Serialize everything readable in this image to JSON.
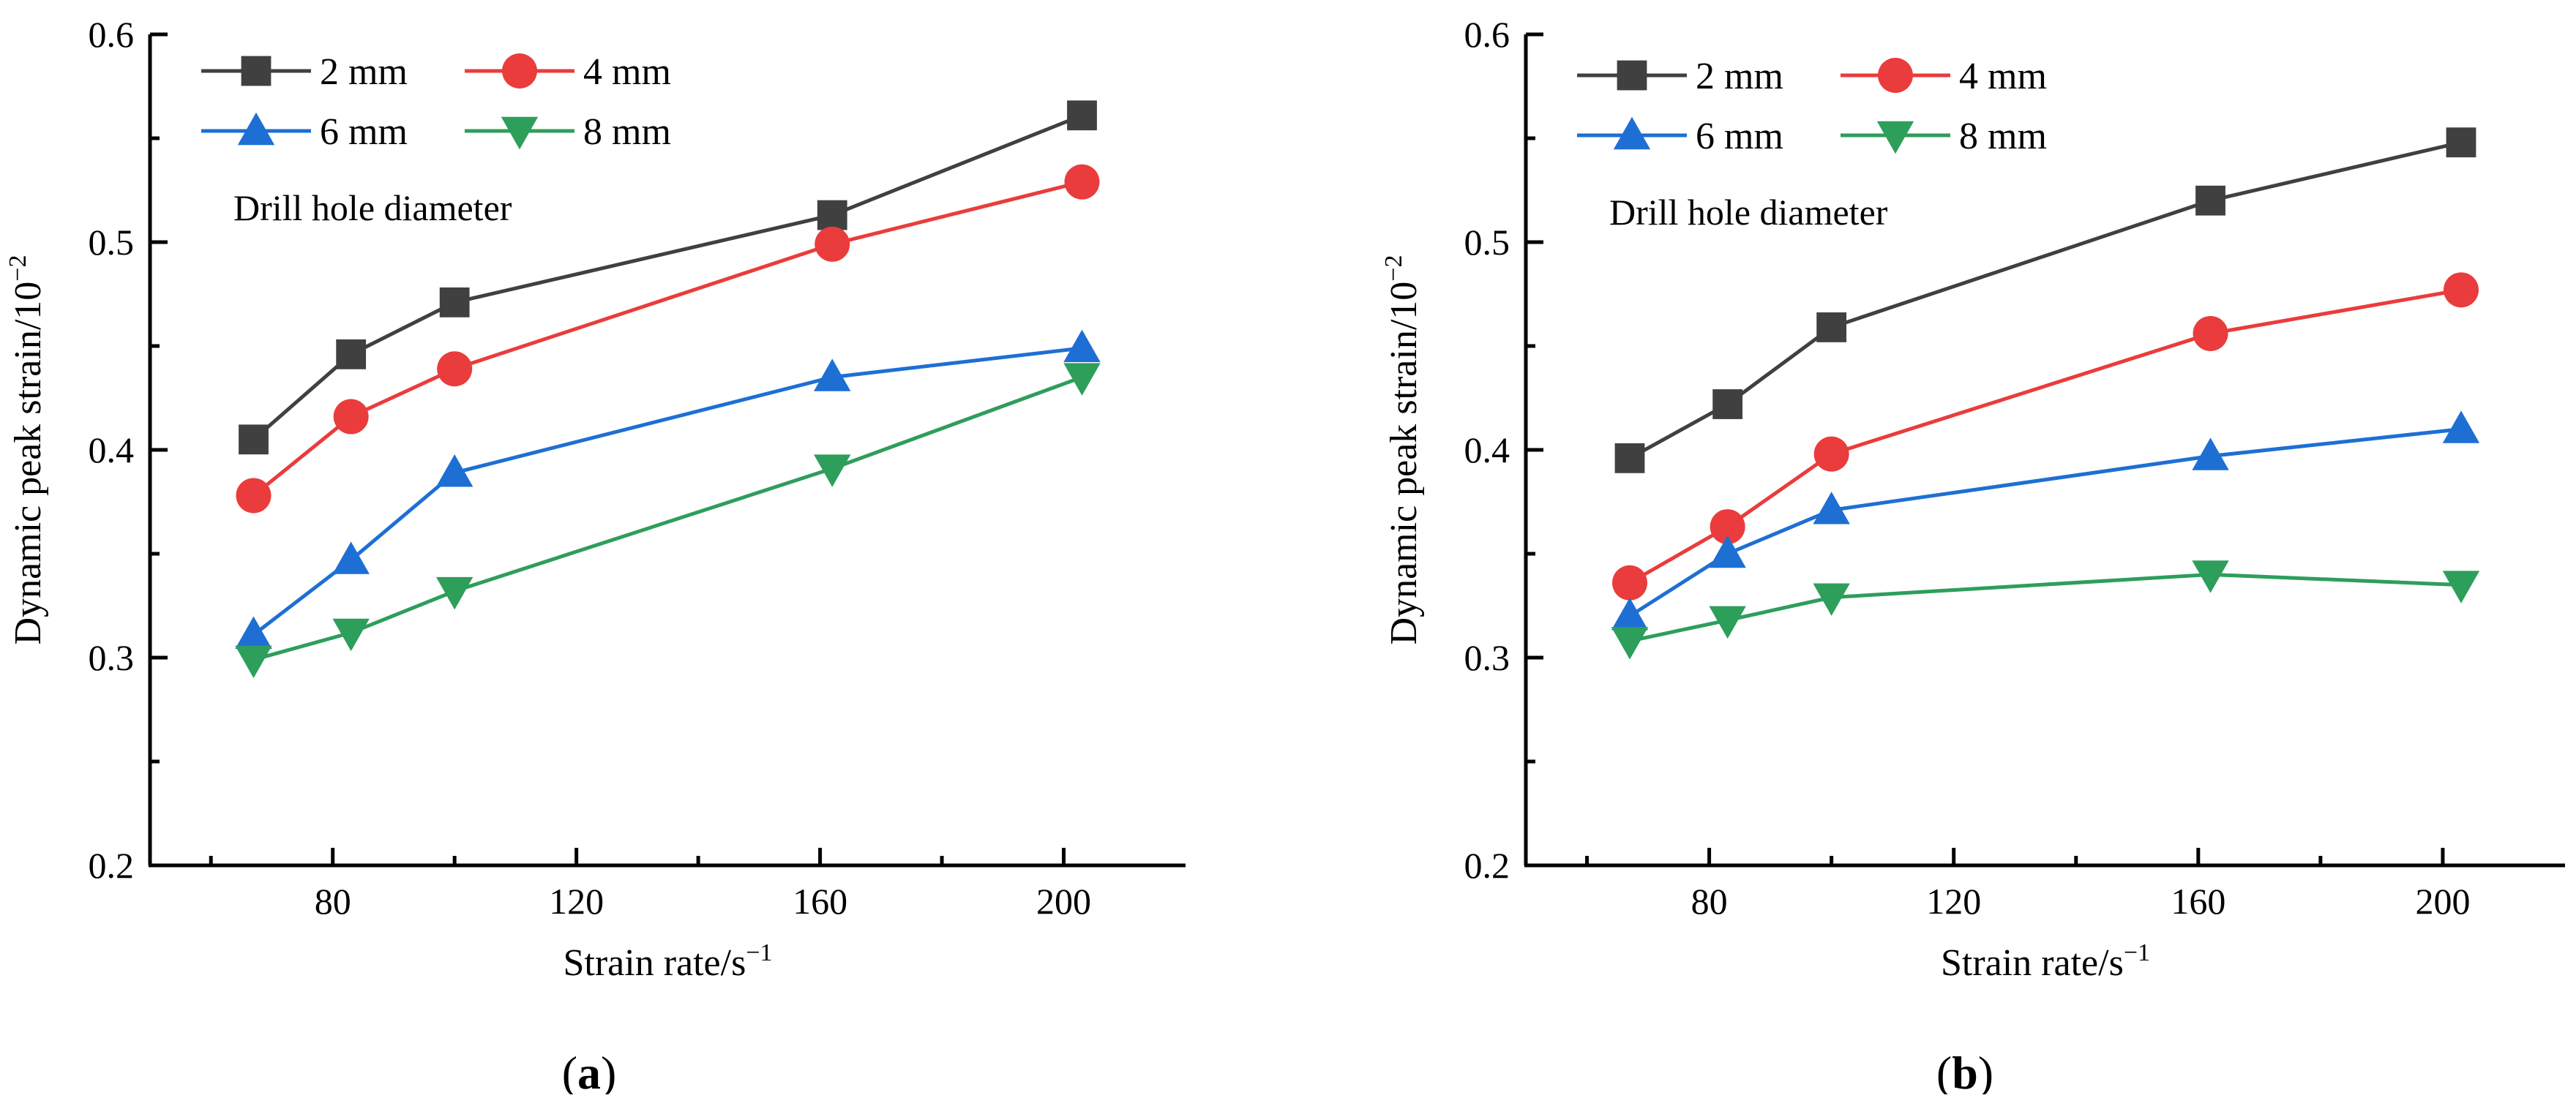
{
  "chart_data": [
    {
      "type": "line",
      "panel_label": "(a)",
      "panel_letter": "a",
      "xlabel": "Strain rate/s",
      "xlabel_sup": "−1",
      "ylabel": "Dynamic peak strain/10",
      "ylabel_sup": "−2",
      "xlim": [
        50,
        220
      ],
      "ylim": [
        0.2,
        0.6
      ],
      "xticks": [
        80,
        120,
        160,
        200
      ],
      "yticks": [
        0.2,
        0.3,
        0.4,
        0.5,
        0.6
      ],
      "ytick_labels": [
        "0.2",
        "0.3",
        "0.4",
        "0.5",
        "0.6"
      ],
      "legend_title": "Drill hole diameter",
      "legend_position": "top-left",
      "grid": false,
      "series": [
        {
          "name": "2 mm",
          "marker": "square",
          "color": "#404040",
          "x": [
            67,
            83,
            100,
            162,
            203
          ],
          "values": [
            0.405,
            0.446,
            0.471,
            0.513,
            0.561
          ]
        },
        {
          "name": "4 mm",
          "marker": "circle",
          "color": "#ea3c3c",
          "x": [
            67,
            83,
            100,
            162,
            203
          ],
          "values": [
            0.378,
            0.416,
            0.439,
            0.499,
            0.529
          ]
        },
        {
          "name": "6 mm",
          "marker": "triangle-up",
          "color": "#1e6fd4",
          "x": [
            67,
            83,
            100,
            162,
            203
          ],
          "values": [
            0.311,
            0.347,
            0.389,
            0.435,
            0.449
          ]
        },
        {
          "name": "8 mm",
          "marker": "triangle-down",
          "color": "#2e9e5b",
          "x": [
            67,
            83,
            100,
            162,
            203
          ],
          "values": [
            0.299,
            0.312,
            0.332,
            0.391,
            0.435
          ]
        }
      ]
    },
    {
      "type": "line",
      "panel_label": "(b)",
      "panel_letter": "b",
      "xlabel": "Strain rate/s",
      "xlabel_sup": "−1",
      "ylabel": "Dynamic peak strain/10",
      "ylabel_sup": "−2",
      "xlim": [
        50,
        220
      ],
      "ylim": [
        0.2,
        0.6
      ],
      "xticks": [
        80,
        120,
        160,
        200
      ],
      "yticks": [
        0.2,
        0.3,
        0.4,
        0.5,
        0.6
      ],
      "ytick_labels": [
        "0.2",
        "0.3",
        "0.4",
        "0.5",
        "0.6"
      ],
      "legend_title": "Drill hole diameter",
      "legend_position": "top-left",
      "grid": false,
      "series": [
        {
          "name": "2 mm",
          "marker": "square",
          "color": "#404040",
          "x": [
            67,
            83,
            100,
            162,
            203
          ],
          "values": [
            0.396,
            0.422,
            0.459,
            0.52,
            0.548
          ]
        },
        {
          "name": "4 mm",
          "marker": "circle",
          "color": "#ea3c3c",
          "x": [
            67,
            83,
            100,
            162,
            203
          ],
          "values": [
            0.336,
            0.363,
            0.398,
            0.456,
            0.477
          ]
        },
        {
          "name": "6 mm",
          "marker": "triangle-up",
          "color": "#1e6fd4",
          "x": [
            67,
            83,
            100,
            162,
            203
          ],
          "values": [
            0.32,
            0.35,
            0.371,
            0.397,
            0.41
          ]
        },
        {
          "name": "8 mm",
          "marker": "triangle-down",
          "color": "#2e9e5b",
          "x": [
            67,
            83,
            100,
            162,
            203
          ],
          "values": [
            0.308,
            0.318,
            0.329,
            0.34,
            0.335
          ]
        }
      ]
    }
  ]
}
